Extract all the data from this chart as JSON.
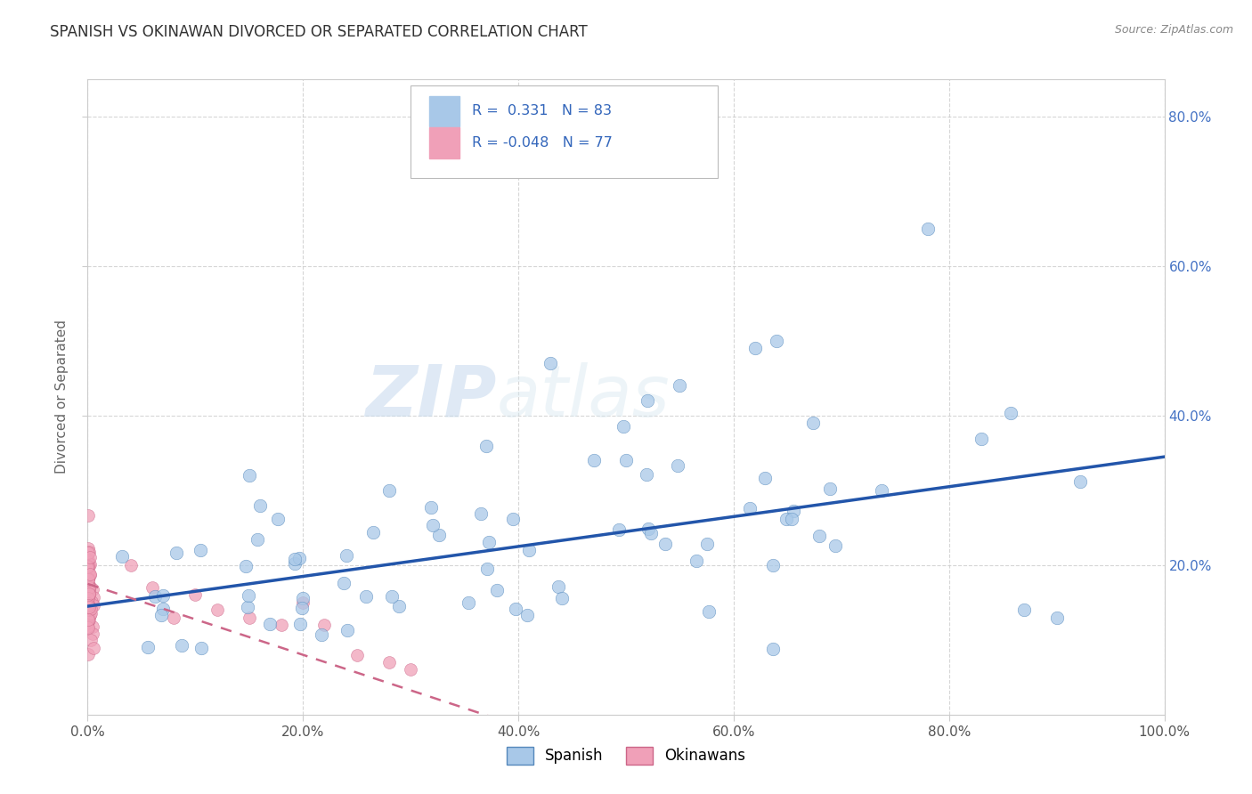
{
  "title": "SPANISH VS OKINAWAN DIVORCED OR SEPARATED CORRELATION CHART",
  "source_text": "Source: ZipAtlas.com",
  "ylabel": "Divorced or Separated",
  "watermark_zip": "ZIP",
  "watermark_atlas": "atlas",
  "xlim": [
    0.0,
    1.0
  ],
  "ylim": [
    0.0,
    0.85
  ],
  "xtick_labels": [
    "0.0%",
    "20.0%",
    "40.0%",
    "60.0%",
    "80.0%",
    "100.0%"
  ],
  "xtick_values": [
    0.0,
    0.2,
    0.4,
    0.6,
    0.8,
    1.0
  ],
  "ytick_labels": [
    "20.0%",
    "40.0%",
    "60.0%",
    "80.0%"
  ],
  "ytick_values": [
    0.2,
    0.4,
    0.6,
    0.8
  ],
  "background_color": "#ffffff",
  "grid_color": "#cccccc",
  "spanish_color": "#a8c8e8",
  "spanish_edge_color": "#5588bb",
  "okinawan_color": "#f0a0b8",
  "okinawan_edge_color": "#cc6688",
  "spanish_line_color": "#2255aa",
  "okinawan_line_color": "#cc6688",
  "title_color": "#333333",
  "title_fontsize": 12,
  "right_tick_color": "#4472c4",
  "legend_r1": "R =  0.331",
  "legend_n1": "N = 83",
  "legend_r2": "R = -0.048",
  "legend_n2": "N = 77"
}
